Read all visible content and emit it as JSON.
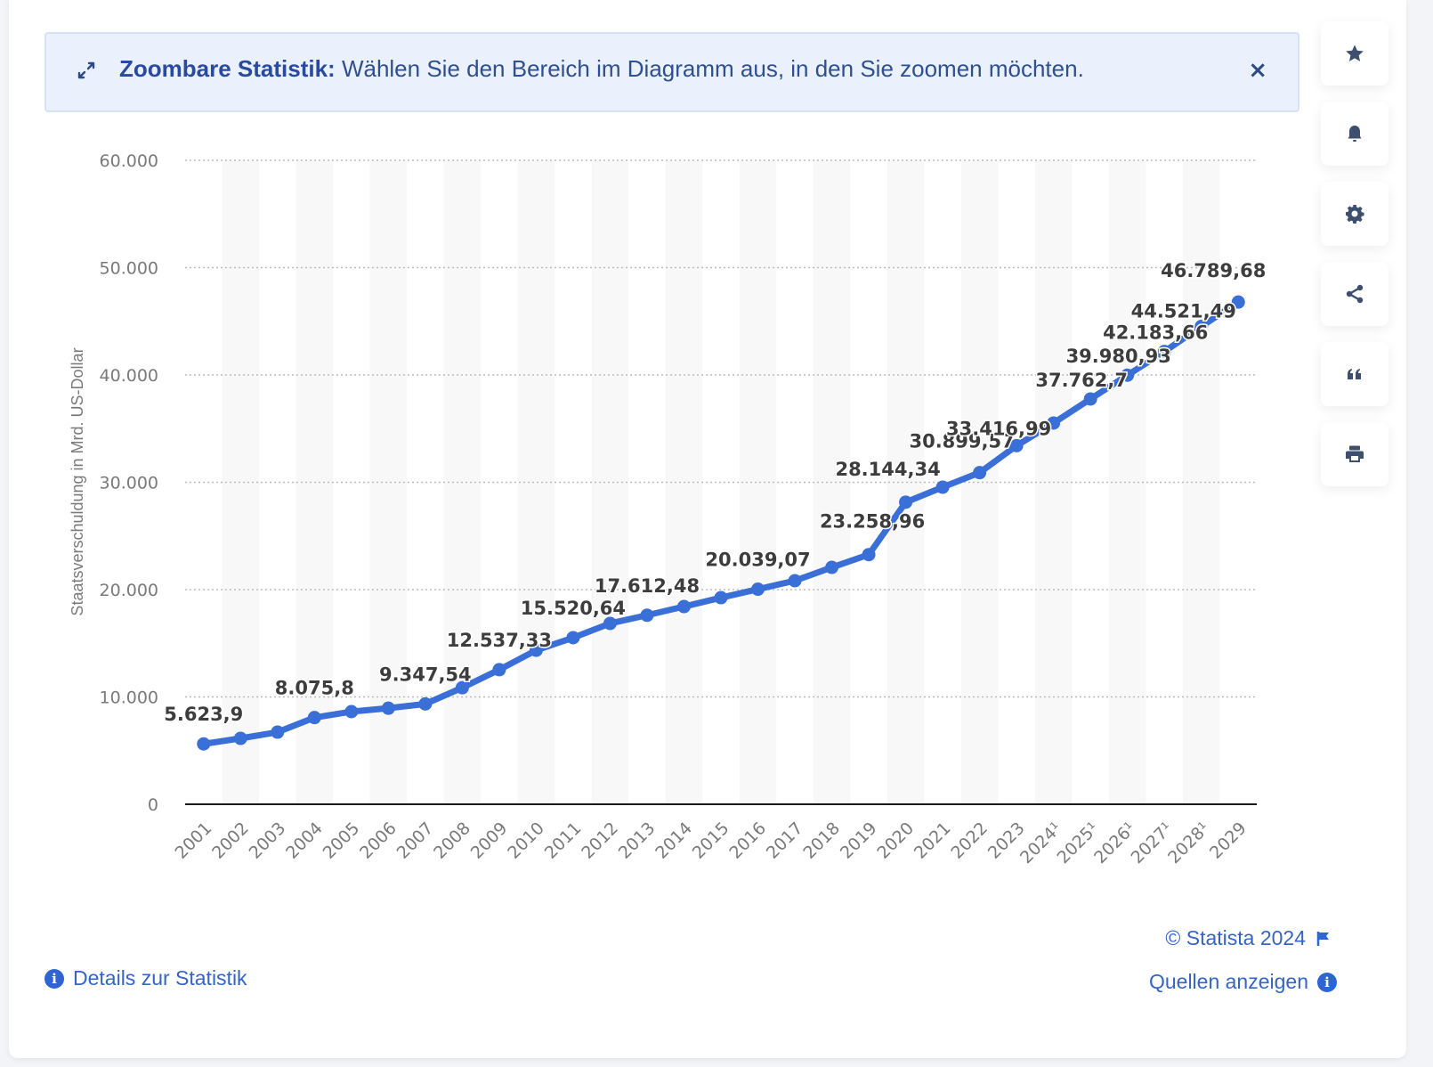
{
  "banner": {
    "icon": "expand-icon",
    "title": "Zoombare Statistik:",
    "text": " Wählen Sie den Bereich im Diagramm aus, in den Sie zoomen möchten.",
    "close_label": "×"
  },
  "tools": [
    {
      "name": "favorite",
      "icon": "star-icon"
    },
    {
      "name": "notification",
      "icon": "bell-icon"
    },
    {
      "name": "settings",
      "icon": "gear-icon"
    },
    {
      "name": "share",
      "icon": "share-icon"
    },
    {
      "name": "cite",
      "icon": "quote-icon"
    },
    {
      "name": "print",
      "icon": "printer-icon"
    }
  ],
  "footer": {
    "copyright": "© Statista 2024",
    "details_label": "Details zur Statistik",
    "sources_label": "Quellen anzeigen"
  },
  "colors": {
    "line": "#3a6fd8",
    "label_text": "#3d3d3d",
    "axis_text": "#7a7a7a",
    "link": "#3565c4",
    "banner_bg": "#eaf1fd"
  },
  "chart_data": {
    "type": "line",
    "title": "",
    "xlabel": "",
    "ylabel": "Staatsverschuldung in Mrd. US-Dollar",
    "ylim": [
      0,
      60000
    ],
    "yticks": [
      0,
      10000,
      20000,
      30000,
      40000,
      50000,
      60000
    ],
    "ytick_labels": [
      "0",
      "10.000",
      "20.000",
      "30.000",
      "40.000",
      "50.000",
      "60.000"
    ],
    "grid": "horizontal-dotted",
    "legend": "none",
    "categories": [
      "2001",
      "2002",
      "2003",
      "2004",
      "2005",
      "2006",
      "2007",
      "2008",
      "2009",
      "2010",
      "2011",
      "2012",
      "2013",
      "2014",
      "2015",
      "2016",
      "2017",
      "2018",
      "2019",
      "2020",
      "2021",
      "2022",
      "2023",
      "2024¹",
      "2025¹",
      "2026¹",
      "2027¹",
      "2028¹",
      "2029"
    ],
    "series": [
      {
        "name": "Staatsverschuldung",
        "values": [
          5623.9,
          6140,
          6720,
          8075.8,
          8630,
          8950,
          9347.54,
          10860,
          12537.33,
          14350,
          15520.64,
          16850,
          17612.48,
          18420,
          19250,
          20039.07,
          20830,
          22070,
          23258.96,
          28144.34,
          29540,
          30899.57,
          33416.99,
          35520,
          37762.7,
          39980.93,
          42183.66,
          44521.49,
          46789.68
        ],
        "labels": [
          "5.623,9",
          "",
          "",
          "8.075,8",
          "",
          "",
          "9.347,54",
          "",
          "12.537,33",
          "",
          "15.520,64",
          "",
          "17.612,48",
          "",
          "",
          "20.039,07",
          "",
          "",
          "23.258,96",
          "28.144,34",
          "",
          "30.899,57",
          "33.416,99",
          "",
          "37.762,7",
          "39.980,93",
          "42.183,66",
          "44.521,49",
          "46.789,68"
        ]
      }
    ],
    "footnote_marker": "1"
  }
}
